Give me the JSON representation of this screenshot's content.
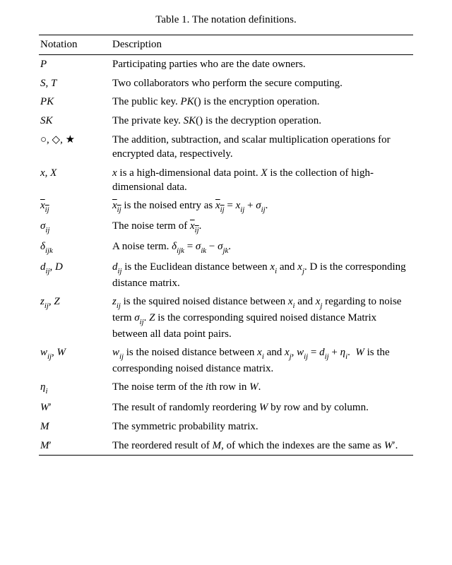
{
  "caption": "Table 1. The notation definitions.",
  "columns": {
    "notation": "Notation",
    "description": "Description"
  },
  "fontFamily": "Times New Roman",
  "textColor": "#000000",
  "bgColor": "#ffffff",
  "fontSizePt": 15,
  "ruleColor": "#000000",
  "rows": [
    {
      "notation_html": "<span class='it'>P</span>",
      "description_html": "Participating parties who are the date owners."
    },
    {
      "notation_html": "<span class='it'>S</span>, <span class='it'>T</span>",
      "description_html": "Two collaborators who perform the secure computing."
    },
    {
      "notation_html": "<span class='it'>PK</span>",
      "description_html": "The public key. <span class='it'>PK</span>() is the encryption operation."
    },
    {
      "notation_html": "<span class='it'>SK</span>",
      "description_html": "The private key. <span class='it'>SK</span>() is the decryption operation."
    },
    {
      "notation_html": "<span style='font-style:normal;'>&#9675;, &#9671;, &#9733;</span>",
      "description_html": "The addition, subtraction, and scalar multiplication operations for encrypted data, respectively."
    },
    {
      "notation_html": "<span class='it'>x</span>, <span class='it'>X</span>",
      "description_html": "<span class='it'>x</span> is a high-dimensional data point. <span class='it'>X</span> is the collection of high-dimensional data."
    },
    {
      "notation_html": "<span class='bar'><span class='it'>x<span class='sub'>ij</span></span></span>",
      "description_html": "<span class='bar'><span class='it'>x<span class='sub'>ij</span></span></span> is the noised entry as <span class='bar'><span class='it'>x<span class='sub'>ij</span></span></span> = <span class='it'>x<span class='sub'>ij</span></span> + <span class='it'>&sigma;<span class='sub'>ij</span></span>."
    },
    {
      "notation_html": "<span class='it'>&sigma;<span class='sub'>ij</span></span>",
      "description_html": "The noise term of <span class='bar'><span class='it'>x<span class='sub'>ij</span></span></span>."
    },
    {
      "notation_html": "<span class='it'>&delta;<span class='sub'>ijk</span></span>",
      "description_html": "A noise term. <span class='it'>&delta;<span class='sub'>ijk</span></span> = <span class='it'>&sigma;<span class='sub'>ik</span></span> &minus; <span class='it'>&sigma;<span class='sub'>jk</span></span>."
    },
    {
      "notation_html": "<span class='it'>d<span class='sub'>ij</span></span>, <span class='it'>D</span>",
      "description_html": "<span class='it'>d<span class='sub'>ij</span></span> is the Euclidean distance between <span class='it'>x<span class='sub'>i</span></span> and <span class='it'>x<span class='sub'>j</span></span>. D is the corresponding distance matrix."
    },
    {
      "notation_html": "<span class='it'>z<span class='sub'>ij</span></span>, <span class='it'>Z</span>",
      "description_html": "<span class='it'>z<span class='sub'>ij</span></span> is the squired noised distance between <span class='it'>x<span class='sub'>i</span></span> and <span class='it'>x<span class='sub'>j</span></span> regarding to noise term <span class='it'>&sigma;<span class='sub'>ij</span></span>. <span class='it'>Z</span> is the corresponding squired noised distance Matrix between all data point pairs."
    },
    {
      "notation_html": "<span class='it'>w<span class='sub'>ij</span></span>, <span class='it'>W</span>",
      "description_html": "<span class='it'>w<span class='sub'>ij</span></span> is the noised distance between <span class='it'>x<span class='sub'>i</span></span> and <span class='it'>x<span class='sub'>j</span></span>, <span class='it'>w<span class='sub'>ij</span></span> = <span class='it'>d<span class='sub'>ij</span></span> + <span class='it'>&eta;<span class='sub'>i</span></span>. &nbsp;<span class='it'>W</span> is the corresponding noised distance matrix."
    },
    {
      "notation_html": "<span class='it'>&eta;<span class='sub'>i</span></span>",
      "description_html": "The noise term of the <span class='it'>i</span>th row in <span class='it'>W</span>."
    },
    {
      "notation_html": "<span class='it'>W</span><span class='prime it'></span>",
      "description_html": "The result of randomly reordering <span class='it'>W</span> by row and by column."
    },
    {
      "notation_html": "<span class='it'>M</span>",
      "description_html": "The symmetric probability matrix."
    },
    {
      "notation_html": "<span class='it'>M</span><span class='prime it'></span>",
      "description_html": "The reordered result of <span class='it'>M</span>, of which the indexes are the same as <span class='it'>W</span><span class='prime it'></span>."
    }
  ]
}
